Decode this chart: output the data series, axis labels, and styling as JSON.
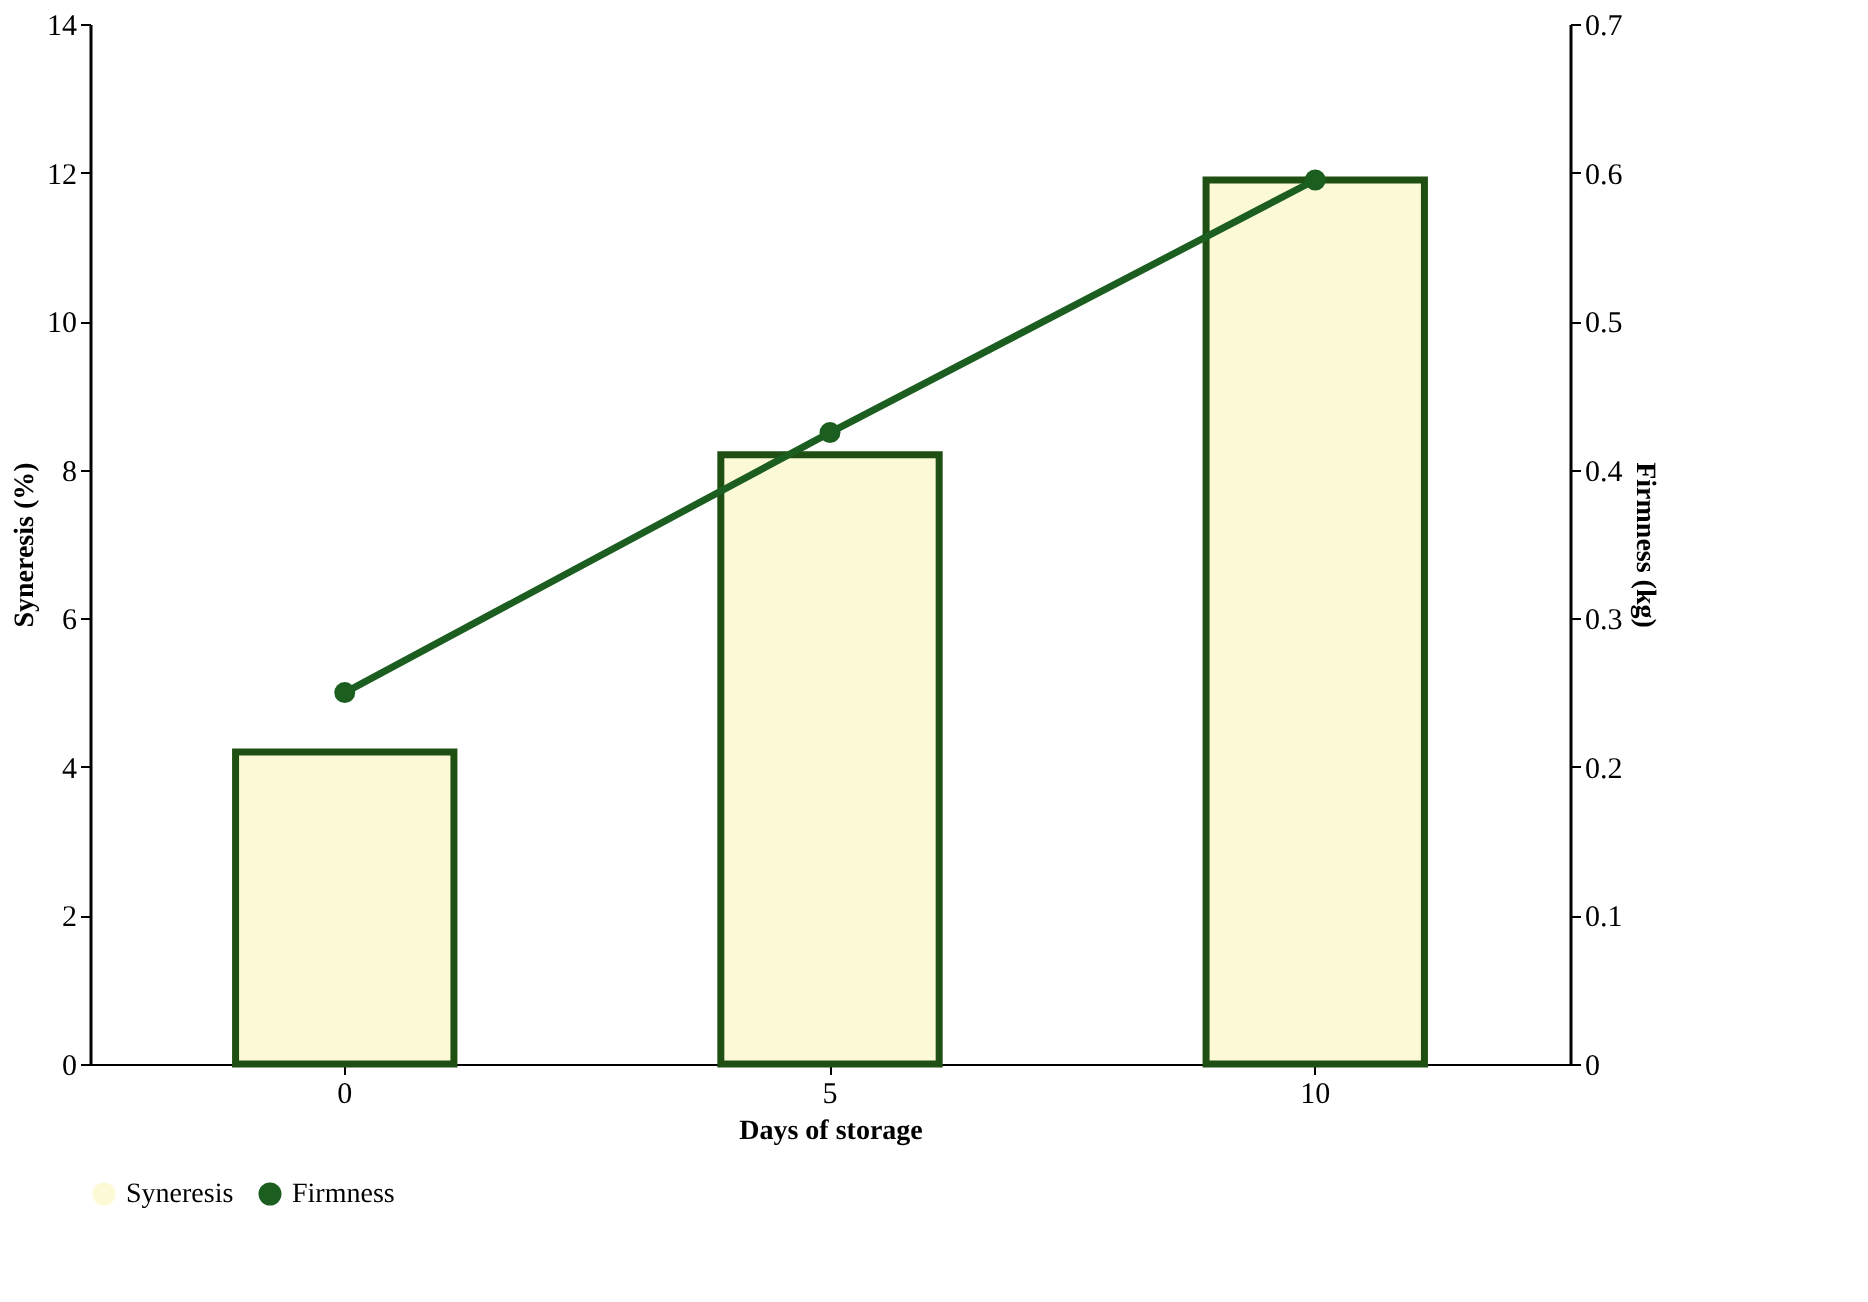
{
  "chart_data": {
    "type": "bar",
    "xlabel": "Days of storage",
    "ylabel": "Syneresis (%)",
    "y2label": "Firmness (kg)",
    "categories": [
      "0",
      "5",
      "10"
    ],
    "series": [
      {
        "name": "Syneresis",
        "color": "#fcf9d6",
        "values": [
          4.2,
          8.2,
          11.9
        ]
      },
      {
        "name": "Firmness",
        "type": "line",
        "axis": "y2",
        "color": "#1b5e20",
        "values": [
          0.25,
          0.425,
          0.595
        ]
      }
    ],
    "ylim": [
      0,
      14
    ],
    "yticks": [
      0,
      2,
      4,
      6,
      8,
      10,
      12,
      14
    ],
    "y2lim": [
      0,
      0.7
    ],
    "y2ticks": [
      0,
      0.1,
      0.2,
      0.3,
      0.4,
      0.5,
      0.6,
      0.7
    ],
    "marker": "circle",
    "grid": false,
    "legend": "bottom"
  }
}
